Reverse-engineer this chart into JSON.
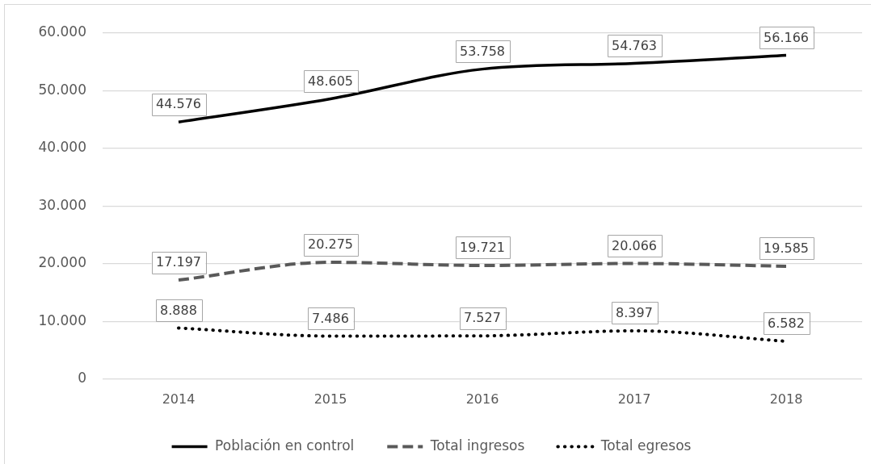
{
  "chart_data": {
    "type": "line",
    "categories": [
      "2014",
      "2015",
      "2016",
      "2017",
      "2018"
    ],
    "series": [
      {
        "name": "Población en control",
        "color": "#000000",
        "line_style": "solid",
        "values": [
          44576,
          48605,
          53758,
          54763,
          56166
        ],
        "value_labels": [
          "44.576",
          "48.605",
          "53.758",
          "54.763",
          "56.166"
        ]
      },
      {
        "name": "Total ingresos",
        "color": "#595959",
        "line_style": "dashed",
        "values": [
          17197,
          20275,
          19721,
          20066,
          19585
        ],
        "value_labels": [
          "17.197",
          "20.275",
          "19.721",
          "20.066",
          "19.585"
        ]
      },
      {
        "name": "Total egresos",
        "color": "#000000",
        "line_style": "dotted",
        "values": [
          8888,
          7486,
          7527,
          8397,
          6582
        ],
        "value_labels": [
          "8.888",
          "7.486",
          "7.527",
          "8.397",
          "6.582"
        ]
      }
    ],
    "ylim": [
      0,
      60000
    ],
    "yticks": [
      0,
      {
        "value": 10000,
        "label": "10.000"
      },
      {
        "value": 20000,
        "label": "20.000"
      },
      {
        "value": 30000,
        "label": "30.000"
      },
      {
        "value": 40000,
        "label": "40.000"
      },
      {
        "value": 50000,
        "label": "50.000"
      },
      {
        "value": 60000,
        "label": "60.000"
      }
    ],
    "grid": "y",
    "legend": "bottom",
    "marker": "none"
  }
}
